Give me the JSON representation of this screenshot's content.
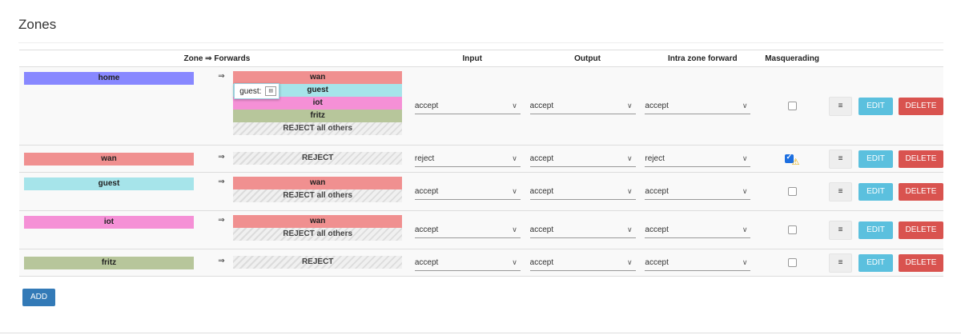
{
  "page": {
    "title": "Zones"
  },
  "table": {
    "headers": {
      "zone_forwards": "Zone ⇒ Forwards",
      "input": "Input",
      "output": "Output",
      "intra": "Intra zone forward",
      "masquerading": "Masquerading"
    },
    "arrow_symbol": "⇒",
    "rows": [
      {
        "zone": "home",
        "zone_color": "#8888ff",
        "forwards": [
          {
            "label": "wan",
            "color": "#f09090"
          },
          {
            "label": "guest",
            "color": "#a6e4ea"
          },
          {
            "label": "iot",
            "color": "#f590d6"
          },
          {
            "label": "fritz",
            "color": "#b7c69b"
          },
          {
            "label": "REJECT all others",
            "color": "striped"
          }
        ],
        "tooltip": "guest:",
        "input": "accept",
        "output": "accept",
        "intra": "accept",
        "masquerading": false
      },
      {
        "zone": "wan",
        "zone_color": "#f09090",
        "forwards": [
          {
            "label": "REJECT",
            "color": "striped"
          }
        ],
        "input": "reject",
        "output": "accept",
        "intra": "reject",
        "masquerading": true,
        "warning": true
      },
      {
        "zone": "guest",
        "zone_color": "#a6e4ea",
        "forwards": [
          {
            "label": "wan",
            "color": "#f09090"
          },
          {
            "label": "REJECT all others",
            "color": "striped"
          }
        ],
        "input": "accept",
        "output": "accept",
        "intra": "accept",
        "masquerading": false
      },
      {
        "zone": "iot",
        "zone_color": "#f590d6",
        "forwards": [
          {
            "label": "wan",
            "color": "#f09090"
          },
          {
            "label": "REJECT all others",
            "color": "striped"
          }
        ],
        "input": "accept",
        "output": "accept",
        "intra": "accept",
        "masquerading": false
      },
      {
        "zone": "fritz",
        "zone_color": "#b7c69b",
        "forwards": [
          {
            "label": "REJECT",
            "color": "striped"
          }
        ],
        "input": "accept",
        "output": "accept",
        "intra": "accept",
        "masquerading": false
      }
    ]
  },
  "buttons": {
    "menu": "≡",
    "edit": "EDIT",
    "delete": "DELETE",
    "add": "ADD"
  },
  "icons": {
    "chevron": "chevron-down-icon",
    "warning": "warning-icon",
    "tooltip": "drag-handle-icon"
  }
}
